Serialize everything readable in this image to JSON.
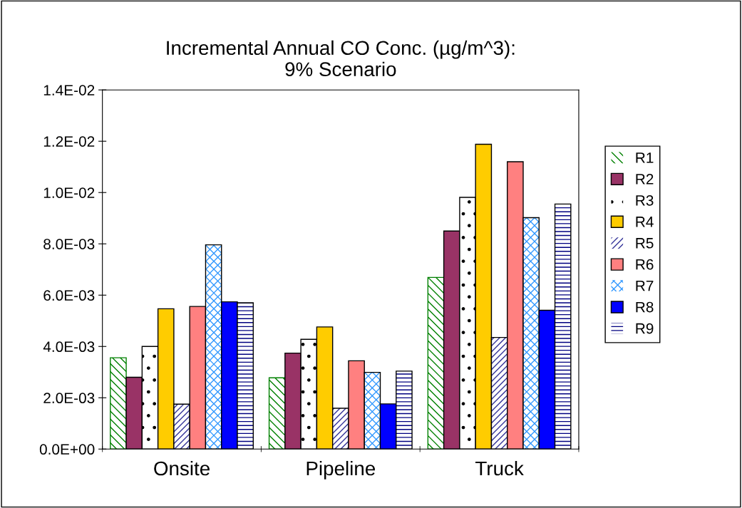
{
  "chart_data": {
    "type": "bar",
    "title": "Incremental Annual CO Conc. (µg/m^3):\n9% Scenario",
    "categories": [
      "Onsite",
      "Pipeline",
      "Truck"
    ],
    "series": [
      {
        "name": "R1",
        "color": "#008000",
        "values": [
          0.00356,
          0.00278,
          0.00669
        ]
      },
      {
        "name": "R2",
        "color": "#993366",
        "values": [
          0.0028,
          0.00374,
          0.0085
        ]
      },
      {
        "name": "R3",
        "color": "#000000",
        "values": [
          0.004,
          0.00428,
          0.00981
        ]
      },
      {
        "name": "R4",
        "color": "#ffcc00",
        "values": [
          0.00547,
          0.00476,
          0.01188
        ]
      },
      {
        "name": "R5",
        "color": "#333399",
        "values": [
          0.00175,
          0.00159,
          0.00435
        ]
      },
      {
        "name": "R6",
        "color": "#ff8080",
        "values": [
          0.00556,
          0.00344,
          0.0112
        ]
      },
      {
        "name": "R7",
        "color": "#3399ff",
        "values": [
          0.00796,
          0.00299,
          0.00902
        ]
      },
      {
        "name": "R8",
        "color": "#0000ff",
        "values": [
          0.00574,
          0.00176,
          0.00541
        ]
      },
      {
        "name": "R9",
        "color": "#000080",
        "values": [
          0.0057,
          0.00304,
          0.00955
        ]
      }
    ],
    "ylim": [
      0,
      0.014
    ],
    "yticks": [
      {
        "value": 0,
        "label": "0.0E+00"
      },
      {
        "value": 0.002,
        "label": "2.0E-03"
      },
      {
        "value": 0.004,
        "label": "4.0E-03"
      },
      {
        "value": 0.006,
        "label": "6.0E-03"
      },
      {
        "value": 0.008,
        "label": "8.0E-03"
      },
      {
        "value": 0.01,
        "label": "1.0E-02"
      },
      {
        "value": 0.012,
        "label": "1.2E-02"
      },
      {
        "value": 0.014,
        "label": "1.4E-02"
      }
    ],
    "grid": false,
    "legend": "right"
  }
}
